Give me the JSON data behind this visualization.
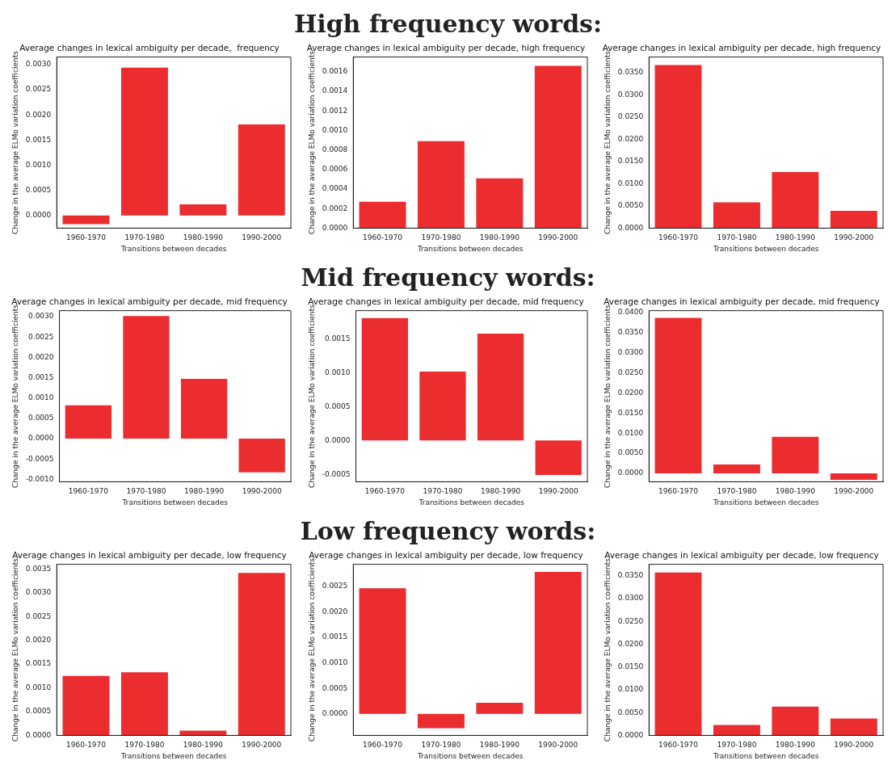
{
  "chart_data": [
    {
      "type": "other",
      "title": "High frequency words:"
    },
    {
      "type": "bar",
      "title": "Average changes in lexical ambiguity per decade,  frequency",
      "xlabel": "Transitions between decades",
      "ylabel": "Change in the average ELMo variation coefficients",
      "categories": [
        "1960-1970",
        "1970-1980",
        "1980-1990",
        "1990-2000"
      ],
      "values": [
        -0.00017,
        0.00294,
        0.00022,
        0.00181
      ],
      "color": "#ec2d30",
      "ylim": [
        -0.00025,
        0.00315
      ],
      "yticks": [
        {
          "value": 0,
          "label": "0.0000"
        },
        {
          "value": 0.0005,
          "label": "0.0005"
        },
        {
          "value": 0.001,
          "label": "0.0010"
        },
        {
          "value": 0.0015,
          "label": "0.0015"
        },
        {
          "value": 0.002,
          "label": "0.0020"
        },
        {
          "value": 0.0025,
          "label": "0.0025"
        },
        {
          "value": 0.003,
          "label": "0.0030"
        }
      ],
      "grid": false,
      "legend": false
    },
    {
      "type": "bar",
      "title": "Average changes in lexical ambiguity per decade, high frequency",
      "xlabel": "Transitions between decades",
      "ylabel": "Change in the average ELMo variation coefficients",
      "categories": [
        "1960-1970",
        "1970-1980",
        "1980-1990",
        "1990-2000"
      ],
      "values": [
        0.00027,
        0.00089,
        0.00051,
        0.00166
      ],
      "color": "#ec2d30",
      "ylim": [
        0,
        0.00175
      ],
      "yticks": [
        {
          "value": 0,
          "label": "0.0000"
        },
        {
          "value": 0.0002,
          "label": "0.0002"
        },
        {
          "value": 0.0004,
          "label": "0.0004"
        },
        {
          "value": 0.0006,
          "label": "0.0006"
        },
        {
          "value": 0.0008,
          "label": "0.0008"
        },
        {
          "value": 0.001,
          "label": "0.0010"
        },
        {
          "value": 0.0012,
          "label": "0.0012"
        },
        {
          "value": 0.0014,
          "label": "0.0014"
        },
        {
          "value": 0.0016,
          "label": "0.0016"
        }
      ],
      "grid": false,
      "legend": false
    },
    {
      "type": "bar",
      "title": "Average changes in lexical ambiguity per decade, high frequency",
      "xlabel": "Transitions between decades",
      "ylabel": "Change in the average ELMo variation coefficients",
      "categories": [
        "1960-1970",
        "1970-1980",
        "1980-1990",
        "1990-2000"
      ],
      "values": [
        0.0367,
        0.0058,
        0.0126,
        0.0039
      ],
      "color": "#ec2d30",
      "ylim": [
        0,
        0.0385
      ],
      "yticks": [
        {
          "value": 0,
          "label": "0.0000"
        },
        {
          "value": 0.005,
          "label": "0.0050"
        },
        {
          "value": 0.01,
          "label": "0.0100"
        },
        {
          "value": 0.015,
          "label": "0.0150"
        },
        {
          "value": 0.02,
          "label": "0.0200"
        },
        {
          "value": 0.025,
          "label": "0.0250"
        },
        {
          "value": 0.03,
          "label": "0.0300"
        },
        {
          "value": 0.035,
          "label": "0.0350"
        }
      ],
      "grid": false,
      "legend": false
    },
    {
      "type": "other",
      "title": "Mid frequency words:"
    },
    {
      "type": "bar",
      "title": "Average changes in lexical ambiguity per decade, mid frequency",
      "xlabel": "Transitions between decades",
      "ylabel": "Change in the average ELMo variation coefficients",
      "categories": [
        "1960-1970",
        "1970-1980",
        "1980-1990",
        "1990-2000"
      ],
      "values": [
        0.00082,
        0.00302,
        0.00147,
        -0.00083
      ],
      "color": "#ec2d30",
      "ylim": [
        -0.00106,
        0.00315
      ],
      "yticks": [
        {
          "value": -0.001,
          "label": "-0.0010"
        },
        {
          "value": -0.0005,
          "label": "-0.0005"
        },
        {
          "value": 0,
          "label": "0.0000"
        },
        {
          "value": 0.0005,
          "label": "0.0005"
        },
        {
          "value": 0.001,
          "label": "0.0010"
        },
        {
          "value": 0.0015,
          "label": "0.0015"
        },
        {
          "value": 0.002,
          "label": "0.0020"
        },
        {
          "value": 0.0025,
          "label": "0.0025"
        },
        {
          "value": 0.003,
          "label": "0.0030"
        }
      ],
      "grid": false,
      "legend": false
    },
    {
      "type": "bar",
      "title": "Average changes in lexical ambiguity per decade, mid frequency",
      "xlabel": "Transitions between decades",
      "ylabel": "Change in the average ELMo variation coefficients",
      "categories": [
        "1960-1970",
        "1970-1980",
        "1980-1990",
        "1990-2000"
      ],
      "values": [
        0.00181,
        0.00102,
        0.00158,
        -0.00051
      ],
      "color": "#ec2d30",
      "ylim": [
        -0.00061,
        0.00192
      ],
      "yticks": [
        {
          "value": -0.0005,
          "label": "-0.0005"
        },
        {
          "value": 0,
          "label": "0.0000"
        },
        {
          "value": 0.0005,
          "label": "0.0005"
        },
        {
          "value": 0.001,
          "label": "0.0010"
        },
        {
          "value": 0.0015,
          "label": "0.0015"
        }
      ],
      "grid": false,
      "legend": false
    },
    {
      "type": "bar",
      "title": "Average changes in lexical ambiguity per decade, mid frequency",
      "xlabel": "Transitions between decades",
      "ylabel": "Change in the average ELMo variation coefficients",
      "categories": [
        "1960-1970",
        "1970-1980",
        "1980-1990",
        "1990-2000"
      ],
      "values": [
        0.0387,
        0.0022,
        0.0091,
        -0.0016
      ],
      "color": "#ec2d30",
      "ylim": [
        -0.0021,
        0.0405
      ],
      "yticks": [
        {
          "value": 0,
          "label": "0.0000"
        },
        {
          "value": 0.005,
          "label": "0.0050"
        },
        {
          "value": 0.01,
          "label": "0.0100"
        },
        {
          "value": 0.015,
          "label": "0.0150"
        },
        {
          "value": 0.02,
          "label": "0.0200"
        },
        {
          "value": 0.025,
          "label": "0.0250"
        },
        {
          "value": 0.03,
          "label": "0.0300"
        },
        {
          "value": 0.035,
          "label": "0.0350"
        },
        {
          "value": 0.04,
          "label": "0.0400"
        }
      ],
      "grid": false,
      "legend": false
    },
    {
      "type": "other",
      "title": "Low frequency words:"
    },
    {
      "type": "bar",
      "title": "Average changes in lexical ambiguity per decade, low frequency",
      "xlabel": "Transitions between decades",
      "ylabel": "Change in the average ELMo variation coefficients",
      "categories": [
        "1960-1970",
        "1970-1980",
        "1980-1990",
        "1990-2000"
      ],
      "values": [
        0.00125,
        0.00133,
        0.0001,
        0.00342
      ],
      "color": "#ec2d30",
      "ylim": [
        0,
        0.0036
      ],
      "yticks": [
        {
          "value": 0,
          "label": "0.0000"
        },
        {
          "value": 0.0005,
          "label": "0.0005"
        },
        {
          "value": 0.001,
          "label": "0.0010"
        },
        {
          "value": 0.0015,
          "label": "0.0015"
        },
        {
          "value": 0.002,
          "label": "0.0020"
        },
        {
          "value": 0.0025,
          "label": "0.0025"
        },
        {
          "value": 0.003,
          "label": "0.0030"
        },
        {
          "value": 0.0035,
          "label": "0.0035"
        }
      ],
      "grid": false,
      "legend": false
    },
    {
      "type": "bar",
      "title": "Average changes in lexical ambiguity per decade, low frequency",
      "xlabel": "Transitions between decades",
      "ylabel": "Change in the average ELMo variation coefficients",
      "categories": [
        "1960-1970",
        "1970-1980",
        "1980-1990",
        "1990-2000"
      ],
      "values": [
        0.00246,
        -0.00028,
        0.00022,
        0.00278
      ],
      "color": "#ec2d30",
      "ylim": [
        -0.00042,
        0.00293
      ],
      "yticks": [
        {
          "value": 0,
          "label": "0.0000"
        },
        {
          "value": 0.0005,
          "label": "0.0005"
        },
        {
          "value": 0.001,
          "label": "0.0010"
        },
        {
          "value": 0.0015,
          "label": "0.0015"
        },
        {
          "value": 0.002,
          "label": "0.0020"
        },
        {
          "value": 0.0025,
          "label": "0.0025"
        }
      ],
      "grid": false,
      "legend": false
    },
    {
      "type": "bar",
      "title": "Average changes in lexical ambiguity per decade, low frequency",
      "xlabel": "Transitions between decades",
      "ylabel": "Change in the average ELMo variation coefficients",
      "categories": [
        "1960-1970",
        "1970-1980",
        "1980-1990",
        "1990-2000"
      ],
      "values": [
        0.0357,
        0.0023,
        0.0063,
        0.0037
      ],
      "color": "#ec2d30",
      "ylim": [
        0,
        0.0375
      ],
      "yticks": [
        {
          "value": 0,
          "label": "0.0000"
        },
        {
          "value": 0.005,
          "label": "0.0050"
        },
        {
          "value": 0.01,
          "label": "0.0100"
        },
        {
          "value": 0.015,
          "label": "0.0150"
        },
        {
          "value": 0.02,
          "label": "0.0200"
        },
        {
          "value": 0.025,
          "label": "0.0250"
        },
        {
          "value": 0.03,
          "label": "0.0300"
        },
        {
          "value": 0.035,
          "label": "0.0350"
        }
      ],
      "grid": false,
      "legend": false
    }
  ]
}
